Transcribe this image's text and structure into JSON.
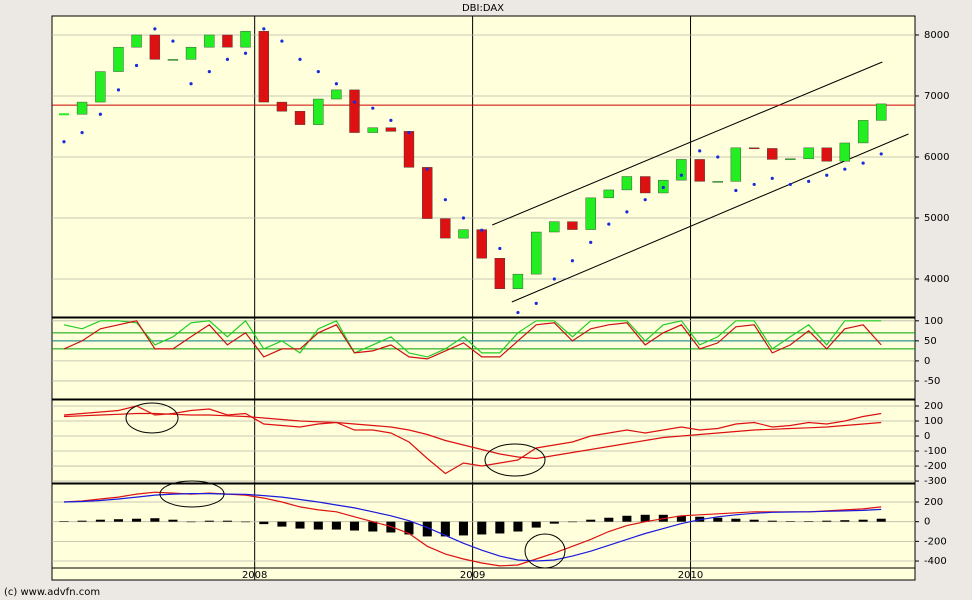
{
  "footer": "(c) www.advfn.com",
  "chart_data": [
    {
      "type": "candlestick",
      "title": "DBI:DAX",
      "x": [
        2007.125,
        2007.208,
        2007.292,
        2007.375,
        2007.458,
        2007.542,
        2007.625,
        2007.708,
        2007.792,
        2007.875,
        2007.958,
        2008.042,
        2008.125,
        2008.208,
        2008.292,
        2008.375,
        2008.458,
        2008.542,
        2008.625,
        2008.708,
        2008.792,
        2008.875,
        2008.958,
        2009.042,
        2009.125,
        2009.208,
        2009.292,
        2009.375,
        2009.458,
        2009.542,
        2009.625,
        2009.708,
        2009.792,
        2009.875,
        2009.958,
        2010.042,
        2010.125,
        2010.208,
        2010.292,
        2010.375,
        2010.458,
        2010.542,
        2010.625,
        2010.708,
        2010.792,
        2010.875
      ],
      "close": [
        6700,
        6900,
        7400,
        7800,
        8000,
        7600,
        7600,
        7800,
        8000,
        7800,
        8060,
        6900,
        6750,
        6530,
        6950,
        7100,
        6400,
        6480,
        6420,
        5830,
        4990,
        4670,
        4810,
        4340,
        3840,
        4080,
        4770,
        4940,
        4810,
        5330,
        5460,
        5680,
        5410,
        5620,
        5960,
        5600,
        5600,
        6150,
        6140,
        5960,
        5970,
        6150,
        5930,
        6230,
        6600,
        6870
      ],
      "sar": [
        6250,
        6400,
        6700,
        7100,
        7500,
        8100,
        7900,
        7200,
        7400,
        7600,
        7700,
        8100,
        7900,
        7600,
        7400,
        7200,
        6900,
        6800,
        6600,
        6400,
        5800,
        5300,
        5000,
        4800,
        4500,
        3450,
        3600,
        4000,
        4300,
        4600,
        4900,
        5100,
        5300,
        5500,
        5700,
        6100,
        6000,
        5450,
        5550,
        5650,
        5550,
        5600,
        5700,
        5800,
        5900,
        6050
      ],
      "up_color": "#22ee22",
      "down_color": "#dd1111",
      "sar_color": "#1a2bdd",
      "hline": 6850,
      "hline_color": "#cc0000",
      "trendlines": [
        [
          [
            2009.09,
            4885
          ],
          [
            2010.88,
            7557
          ]
        ],
        [
          [
            2009.18,
            3623
          ],
          [
            2011.0,
            6377
          ]
        ]
      ],
      "xlim": [
        2007.07,
        2011.03
      ],
      "xticks": [
        2008,
        2009,
        2010
      ],
      "ylim": [
        3377,
        8311
      ],
      "yticks": [
        4000,
        5000,
        6000,
        7000,
        8000
      ],
      "grid": true
    },
    {
      "type": "line",
      "series": [
        {
          "color": "#22cc22",
          "values": [
            90,
            80,
            100,
            100,
            95,
            40,
            60,
            95,
            100,
            60,
            100,
            30,
            50,
            20,
            80,
            100,
            20,
            40,
            60,
            20,
            10,
            30,
            60,
            20,
            20,
            70,
            100,
            100,
            60,
            100,
            100,
            100,
            50,
            90,
            100,
            40,
            60,
            100,
            100,
            30,
            60,
            90,
            40,
            100,
            100,
            100
          ]
        },
        {
          "color": "#cc1111",
          "values": [
            30,
            50,
            80,
            90,
            100,
            30,
            30,
            60,
            90,
            40,
            70,
            10,
            30,
            30,
            70,
            90,
            20,
            25,
            40,
            10,
            5,
            25,
            45,
            10,
            10,
            50,
            90,
            95,
            50,
            80,
            90,
            95,
            40,
            70,
            90,
            30,
            45,
            85,
            90,
            20,
            40,
            75,
            30,
            80,
            90,
            40
          ]
        }
      ],
      "levels": [
        70,
        50,
        30
      ],
      "level_colors": [
        "#00a000",
        "#008080",
        "#00a000"
      ],
      "ylim": [
        -95,
        107
      ],
      "yticks": [
        100,
        50,
        0,
        -50
      ],
      "grid": true
    },
    {
      "type": "line",
      "series": [
        {
          "color": "#dd1111",
          "values": [
            140,
            150,
            160,
            170,
            200,
            140,
            150,
            170,
            180,
            140,
            150,
            80,
            70,
            60,
            80,
            90,
            40,
            40,
            20,
            -40,
            -150,
            -250,
            -180,
            -200,
            -180,
            -160,
            -80,
            -60,
            -40,
            0,
            20,
            40,
            20,
            40,
            60,
            40,
            50,
            80,
            90,
            60,
            70,
            90,
            80,
            100,
            130,
            150
          ]
        },
        {
          "color": "#dd1111",
          "values": [
            130,
            135,
            140,
            145,
            150,
            150,
            145,
            140,
            140,
            135,
            130,
            120,
            110,
            100,
            95,
            90,
            80,
            70,
            60,
            40,
            10,
            -30,
            -60,
            -90,
            -120,
            -140,
            -150,
            -130,
            -110,
            -90,
            -70,
            -50,
            -30,
            -10,
            0,
            10,
            20,
            30,
            40,
            45,
            50,
            55,
            60,
            70,
            80,
            90
          ]
        }
      ],
      "ylim": [
        -313,
        240
      ],
      "yticks": [
        200,
        100,
        0,
        -100,
        -200,
        -300
      ],
      "grid": true
    },
    {
      "type": "line",
      "series": [
        {
          "color": "#dd1111",
          "values": [
            200,
            210,
            230,
            250,
            280,
            300,
            290,
            280,
            290,
            280,
            270,
            240,
            200,
            150,
            120,
            100,
            50,
            0,
            -50,
            -120,
            -250,
            -330,
            -380,
            -420,
            -450,
            -440,
            -380,
            -320,
            -250,
            -180,
            -100,
            -40,
            0,
            30,
            60,
            70,
            80,
            90,
            100,
            100,
            100,
            100,
            110,
            120,
            130,
            150
          ]
        },
        {
          "color": "#1a1add",
          "values": [
            200,
            205,
            215,
            230,
            250,
            270,
            280,
            285,
            285,
            280,
            278,
            265,
            250,
            225,
            200,
            170,
            140,
            100,
            60,
            10,
            -60,
            -140,
            -220,
            -290,
            -350,
            -390,
            -400,
            -390,
            -350,
            -300,
            -240,
            -180,
            -120,
            -70,
            -20,
            20,
            50,
            70,
            85,
            95,
            98,
            100,
            105,
            110,
            115,
            125
          ]
        }
      ],
      "bars": {
        "color": "#000000",
        "values": [
          5,
          10,
          20,
          25,
          30,
          35,
          20,
          0,
          10,
          10,
          0,
          -25,
          -50,
          -70,
          -80,
          -80,
          -90,
          -100,
          -110,
          -130,
          -150,
          -150,
          -140,
          -130,
          -120,
          -100,
          -60,
          -20,
          0,
          20,
          40,
          60,
          70,
          70,
          60,
          50,
          40,
          30,
          20,
          10,
          5,
          5,
          10,
          15,
          20,
          30
        ]
      },
      "ylim": [
        -471,
        383
      ],
      "yticks": [
        200,
        0,
        -200,
        -400
      ],
      "grid": true
    }
  ]
}
